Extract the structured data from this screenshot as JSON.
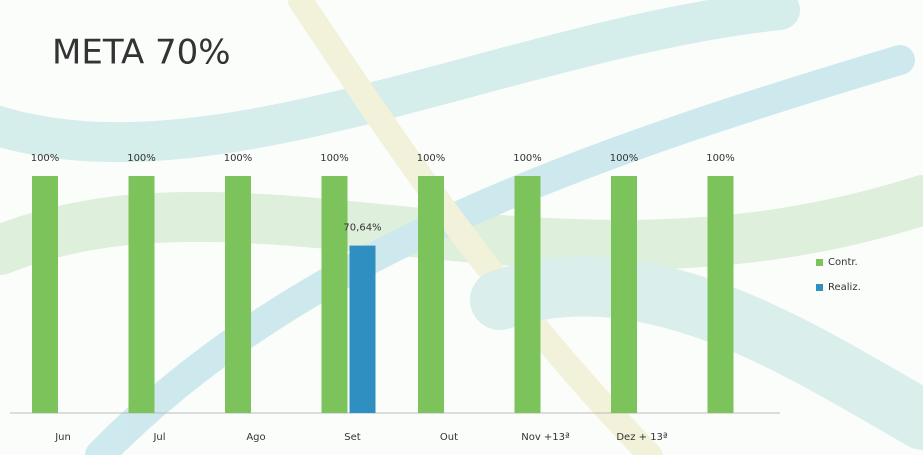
{
  "chart_data": {
    "type": "bar",
    "title": "META 70%",
    "categories": [
      "Jun",
      "Jul",
      "Ago",
      "Set",
      "Out",
      "Nov +13ª",
      "Dez + 13ª",
      null
    ],
    "series": [
      {
        "name": "Contr.",
        "color": "#7dc35b",
        "values": [
          100,
          100,
          100,
          100,
          100,
          100,
          100,
          100
        ],
        "value_labels": [
          "100%",
          "100%",
          "100%",
          "100%",
          "100%",
          "100%",
          "100%",
          "100%"
        ]
      },
      {
        "name": "Realiz.",
        "color": "#2f8fc0",
        "values": [
          null,
          null,
          null,
          70.64,
          null,
          null,
          null,
          null
        ],
        "value_labels": [
          null,
          null,
          null,
          "70,64%",
          null,
          null,
          null,
          null
        ]
      }
    ],
    "legend": "right"
  }
}
